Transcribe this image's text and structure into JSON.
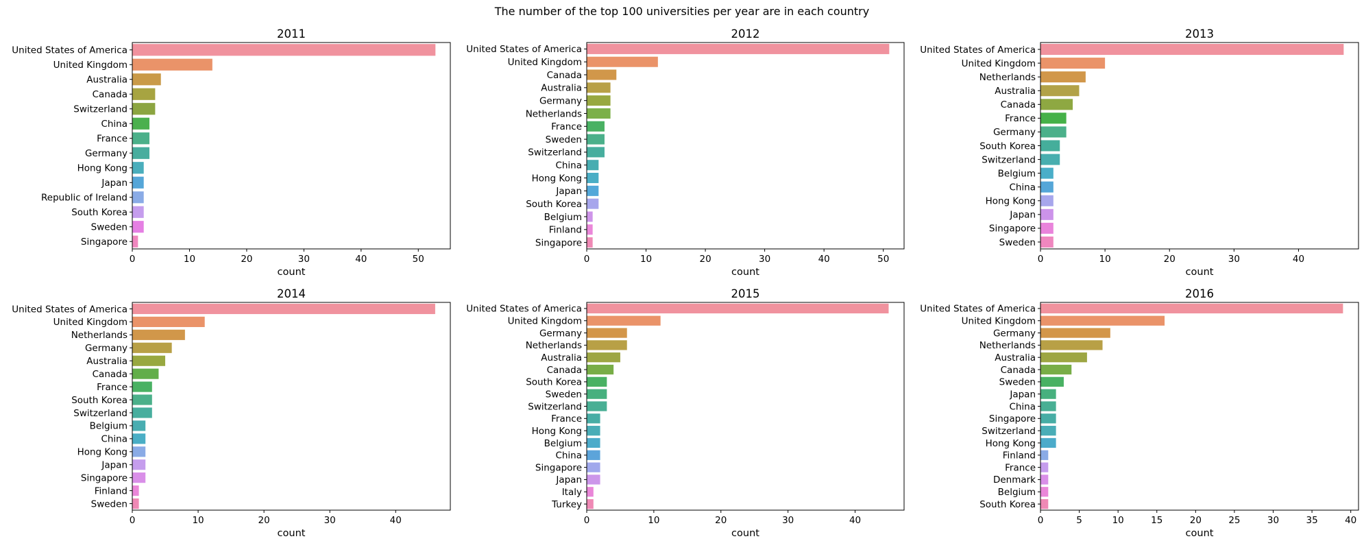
{
  "figure": {
    "title": "The number of the top 100 universities per year are in each country"
  },
  "chart_data": [
    {
      "type": "bar",
      "orientation": "horizontal",
      "title": "2011",
      "xlabel": "count",
      "ylabel": "",
      "xlim": [
        0,
        55.6
      ],
      "xticks": [
        0,
        10,
        20,
        30,
        40,
        50
      ],
      "categories": [
        "United States of America",
        "United Kingdom",
        "Australia",
        "Canada",
        "Switzerland",
        "China",
        "France",
        "Germany",
        "Hong Kong",
        "Japan",
        "Republic of Ireland",
        "South Korea",
        "Sweden",
        "Singapore"
      ],
      "values": [
        53,
        14,
        5,
        4,
        4,
        3,
        3,
        3,
        2,
        2,
        2,
        2,
        2,
        1
      ],
      "colors": [
        "#f0929e",
        "#ea9369",
        "#c99a48",
        "#a7a441",
        "#8ca541",
        "#4bb04e",
        "#4bb08a",
        "#48ad9e",
        "#4aaebc",
        "#55a6d8",
        "#8aabe6",
        "#c59ded",
        "#e57fe3",
        "#ef87bf"
      ]
    },
    {
      "type": "bar",
      "orientation": "horizontal",
      "title": "2012",
      "xlabel": "count",
      "ylabel": "",
      "xlim": [
        0,
        53.5
      ],
      "xticks": [
        0,
        10,
        20,
        30,
        40,
        50
      ],
      "categories": [
        "United States of America",
        "United Kingdom",
        "Canada",
        "Australia",
        "Germany",
        "Netherlands",
        "France",
        "Sweden",
        "Switzerland",
        "China",
        "Hong Kong",
        "Japan",
        "South Korea",
        "Belgium",
        "Finland",
        "Singapore"
      ],
      "values": [
        51,
        12,
        5,
        4,
        4,
        4,
        3,
        3,
        3,
        2,
        2,
        2,
        2,
        1,
        1,
        1
      ],
      "colors": [
        "#f0929e",
        "#ea9369",
        "#d1974a",
        "#b8a046",
        "#98a840",
        "#7cb049",
        "#49b163",
        "#4bb08a",
        "#47ae9e",
        "#48adb1",
        "#4aaec5",
        "#53a8d9",
        "#a7a6ec",
        "#ce94e9",
        "#ea87d9",
        "#ef89b5"
      ]
    },
    {
      "type": "bar",
      "orientation": "horizontal",
      "title": "2013",
      "xlabel": "count",
      "ylabel": "",
      "xlim": [
        0,
        49.3
      ],
      "xticks": [
        0,
        10,
        20,
        30,
        40
      ],
      "categories": [
        "United States of America",
        "United Kingdom",
        "Netherlands",
        "Australia",
        "Canada",
        "France",
        "Germany",
        "South Korea",
        "Switzerland",
        "Belgium",
        "China",
        "Hong Kong",
        "Japan",
        "Singapore",
        "Sweden"
      ],
      "values": [
        47,
        10,
        7,
        6,
        5,
        4,
        4,
        3,
        3,
        2,
        2,
        2,
        2,
        2,
        2
      ],
      "colors": [
        "#f0929e",
        "#ea9369",
        "#d1974a",
        "#b2a248",
        "#8ea842",
        "#45b148",
        "#4bb08a",
        "#45ae9b",
        "#48aeaf",
        "#4aaec8",
        "#55a6d8",
        "#a7a6ec",
        "#cc93ea",
        "#e984db",
        "#ef87bf"
      ]
    },
    {
      "type": "bar",
      "orientation": "horizontal",
      "title": "2014",
      "xlabel": "count",
      "ylabel": "",
      "xlim": [
        0,
        48.3
      ],
      "xticks": [
        0,
        10,
        20,
        30,
        40
      ],
      "categories": [
        "United States of America",
        "United Kingdom",
        "Netherlands",
        "Germany",
        "Australia",
        "Canada",
        "France",
        "South Korea",
        "Switzerland",
        "Belgium",
        "China",
        "Hong Kong",
        "Japan",
        "Singapore",
        "Finland",
        "Sweden"
      ],
      "values": [
        46,
        11,
        8,
        6,
        5,
        4,
        3,
        3,
        3,
        2,
        2,
        2,
        2,
        2,
        1,
        1
      ],
      "colors": [
        "#f0929e",
        "#ea9369",
        "#d1974a",
        "#b8a046",
        "#98a840",
        "#62ae4a",
        "#49b163",
        "#4bb08a",
        "#47ae9e",
        "#48adb1",
        "#4aaec5",
        "#8aabe6",
        "#c59ded",
        "#d98fe8",
        "#ea87d9",
        "#ef89b5"
      ]
    },
    {
      "type": "bar",
      "orientation": "horizontal",
      "title": "2015",
      "xlabel": "count",
      "ylabel": "",
      "xlim": [
        0,
        47.3
      ],
      "xticks": [
        0,
        10,
        20,
        30,
        40
      ],
      "categories": [
        "United States of America",
        "United Kingdom",
        "Germany",
        "Netherlands",
        "Australia",
        "Canada",
        "South Korea",
        "Sweden",
        "Switzerland",
        "France",
        "Hong Kong",
        "Belgium",
        "China",
        "Singapore",
        "Japan",
        "Italy",
        "Turkey"
      ],
      "values": [
        45,
        11,
        6,
        6,
        5,
        4,
        3,
        3,
        3,
        2,
        2,
        2,
        2,
        2,
        2,
        1,
        1
      ],
      "colors": [
        "#f0929e",
        "#ea9369",
        "#d3964a",
        "#b8a046",
        "#9da643",
        "#78ad47",
        "#49b163",
        "#47b07e",
        "#48af94",
        "#47ada5",
        "#49adb7",
        "#4babca",
        "#5ca4da",
        "#a0a8ec",
        "#cc96ea",
        "#e986d8",
        "#ef89b5"
      ]
    },
    {
      "type": "bar",
      "orientation": "horizontal",
      "title": "2016",
      "xlabel": "count",
      "ylabel": "",
      "xlim": [
        0,
        41
      ],
      "xticks": [
        0,
        5,
        10,
        15,
        20,
        25,
        30,
        35,
        40
      ],
      "categories": [
        "United States of America",
        "United Kingdom",
        "Germany",
        "Netherlands",
        "Australia",
        "Canada",
        "Sweden",
        "Japan",
        "China",
        "Singapore",
        "Switzerland",
        "Hong Kong",
        "Finland",
        "France",
        "Denmark",
        "Belgium",
        "South Korea"
      ],
      "values": [
        39,
        16,
        9,
        8,
        6,
        4,
        3,
        2,
        2,
        2,
        2,
        2,
        1,
        1,
        1,
        1,
        1
      ],
      "colors": [
        "#f0929e",
        "#ea9369",
        "#d3964a",
        "#b8a046",
        "#9da643",
        "#78ad47",
        "#49b163",
        "#47b07e",
        "#48af94",
        "#47ada5",
        "#49adb7",
        "#4babca",
        "#8aabe6",
        "#c59ded",
        "#d98fe8",
        "#ea87d9",
        "#ef89b5"
      ]
    }
  ]
}
